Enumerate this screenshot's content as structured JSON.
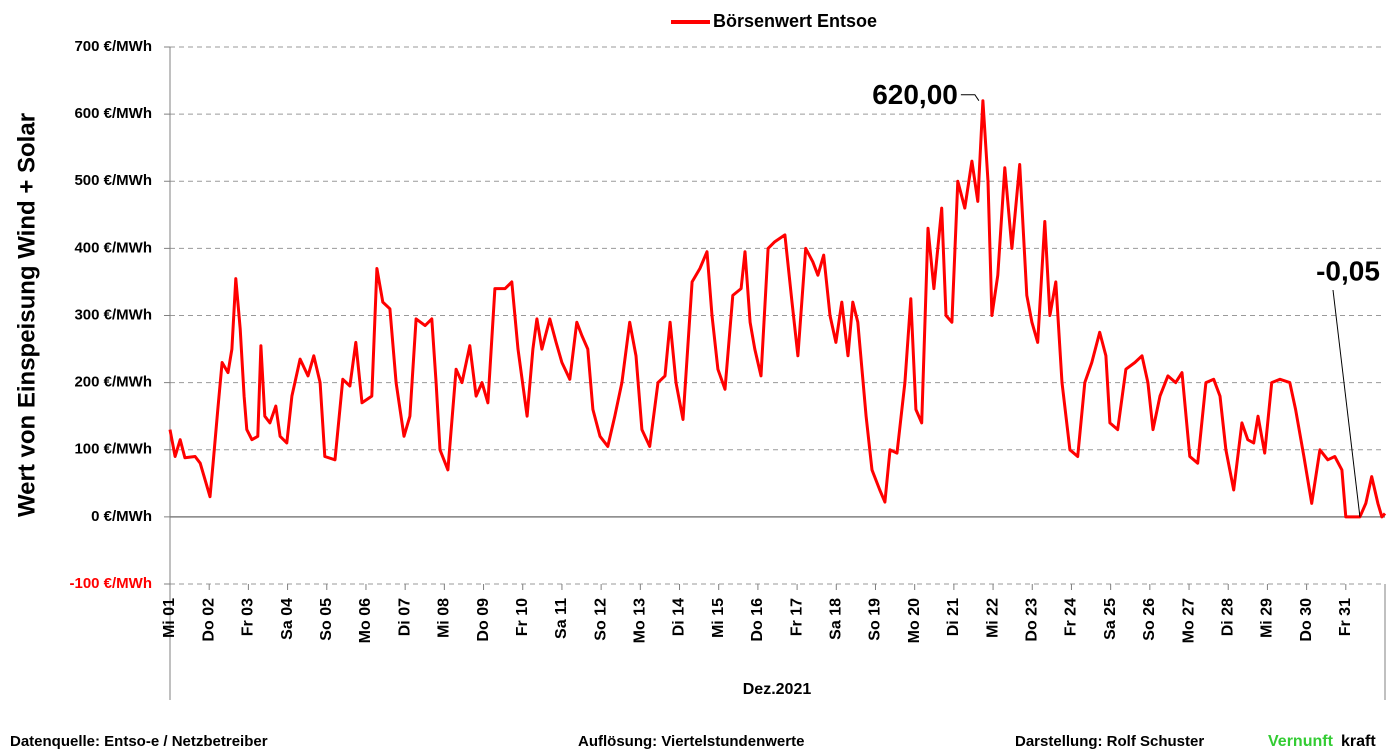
{
  "chart_data": {
    "type": "line",
    "legend": "Börsenwert Entsoe",
    "y_label": "Wert von Einspeisung Wind + Solar",
    "x_label": "Dez.2021",
    "ylim": [
      -100,
      700
    ],
    "yticks": [
      {
        "value": -100,
        "label": "-100 €/MWh"
      },
      {
        "value": 0,
        "label": "0 €/MWh"
      },
      {
        "value": 100,
        "label": "100 €/MWh"
      },
      {
        "value": 200,
        "label": "200 €/MWh"
      },
      {
        "value": 300,
        "label": "300 €/MWh"
      },
      {
        "value": 400,
        "label": "400 €/MWh"
      },
      {
        "value": 500,
        "label": "500 €/MWh"
      },
      {
        "value": 600,
        "label": "600 €/MWh"
      },
      {
        "value": 700,
        "label": "700 €/MWh"
      }
    ],
    "negative_tick_color": "#ff0000",
    "grid": true,
    "xlim": [
      0,
      31
    ],
    "xticks": [
      {
        "value": 0,
        "label": "Mi 01"
      },
      {
        "value": 1,
        "label": "Do 02"
      },
      {
        "value": 2,
        "label": "Fr 03"
      },
      {
        "value": 3,
        "label": "Sa 04"
      },
      {
        "value": 4,
        "label": "So 05"
      },
      {
        "value": 5,
        "label": "Mo 06"
      },
      {
        "value": 6,
        "label": "Di 07"
      },
      {
        "value": 7,
        "label": "Mi 08"
      },
      {
        "value": 8,
        "label": "Do 09"
      },
      {
        "value": 9,
        "label": "Fr 10"
      },
      {
        "value": 10,
        "label": "Sa 11"
      },
      {
        "value": 11,
        "label": "So 12"
      },
      {
        "value": 12,
        "label": "Mo 13"
      },
      {
        "value": 13,
        "label": "Di 14"
      },
      {
        "value": 14,
        "label": "Mi 15"
      },
      {
        "value": 15,
        "label": "Do 16"
      },
      {
        "value": 16,
        "label": "Fr 17"
      },
      {
        "value": 17,
        "label": "Sa 18"
      },
      {
        "value": 18,
        "label": "So 19"
      },
      {
        "value": 19,
        "label": "Mo 20"
      },
      {
        "value": 20,
        "label": "Di 21"
      },
      {
        "value": 21,
        "label": "Mi 22"
      },
      {
        "value": 22,
        "label": "Do 23"
      },
      {
        "value": 23,
        "label": "Fr 24"
      },
      {
        "value": 24,
        "label": "Sa 25"
      },
      {
        "value": 25,
        "label": "So 26"
      },
      {
        "value": 26,
        "label": "Mo 27"
      },
      {
        "value": 27,
        "label": "Di 28"
      },
      {
        "value": 28,
        "label": "Mi 29"
      },
      {
        "value": 29,
        "label": "Do 30"
      },
      {
        "value": 30,
        "label": "Fr 31"
      }
    ],
    "series": [
      {
        "name": "Börsenwert Entsoe",
        "color": "#ff0000",
        "x": [
          0.0,
          0.13,
          0.26,
          0.38,
          0.64,
          0.77,
          0.92,
          1.02,
          1.1,
          1.22,
          1.33,
          1.48,
          1.58,
          1.68,
          1.79,
          1.89,
          1.96,
          2.09,
          2.24,
          2.32,
          2.42,
          2.55,
          2.7,
          2.81,
          2.98,
          3.11,
          3.32,
          3.52,
          3.67,
          3.83,
          3.95,
          4.21,
          4.41,
          4.59,
          4.74,
          4.9,
          5.15,
          5.28,
          5.43,
          5.61,
          5.77,
          5.97,
          6.12,
          6.28,
          6.51,
          6.68,
          6.79,
          6.89,
          7.09,
          7.3,
          7.45,
          7.65,
          7.81,
          7.96,
          8.11,
          8.29,
          8.55,
          8.72,
          8.88,
          9.11,
          9.26,
          9.36,
          9.49,
          9.69,
          9.85,
          10.0,
          10.2,
          10.38,
          10.51,
          10.66,
          10.79,
          10.97,
          11.17,
          11.35,
          11.53,
          11.73,
          11.89,
          12.04,
          12.24,
          12.45,
          12.63,
          12.76,
          12.91,
          13.09,
          13.32,
          13.52,
          13.7,
          13.83,
          13.98,
          14.16,
          14.36,
          14.57,
          14.67,
          14.8,
          14.92,
          15.08,
          15.26,
          15.43,
          15.69,
          15.87,
          16.02,
          16.22,
          16.4,
          16.53,
          16.68,
          16.84,
          16.99,
          17.14,
          17.3,
          17.42,
          17.55,
          17.76,
          17.91,
          18.11,
          18.24,
          18.37,
          18.55,
          18.75,
          18.9,
          19.03,
          19.18,
          19.34,
          19.49,
          19.69,
          19.8,
          19.95,
          20.1,
          20.28,
          20.46,
          20.61,
          20.74,
          20.87,
          20.97,
          21.12,
          21.3,
          21.48,
          21.68,
          21.86,
          21.99,
          22.14,
          22.32,
          22.45,
          22.6,
          22.76,
          22.96,
          23.16,
          23.34,
          23.52,
          23.72,
          23.88,
          23.98,
          24.18,
          24.39,
          24.62,
          24.8,
          24.95,
          25.08,
          25.26,
          25.46,
          25.66,
          25.82,
          26.02,
          26.22,
          26.43,
          26.63,
          26.79,
          26.94,
          27.14,
          27.35,
          27.5,
          27.65,
          27.76,
          27.93,
          28.11,
          28.32,
          28.57,
          28.72,
          28.93,
          29.13,
          29.34,
          29.54,
          29.72,
          29.9,
          30.0,
          30.15,
          30.36,
          30.51,
          30.66,
          30.82,
          30.92,
          31.0
        ],
        "values": [
          130,
          90,
          115,
          88,
          90,
          80,
          50,
          30,
          80,
          160,
          230,
          215,
          250,
          355,
          280,
          180,
          130,
          115,
          120,
          255,
          150,
          140,
          165,
          120,
          110,
          180,
          235,
          210,
          240,
          200,
          90,
          85,
          205,
          195,
          260,
          170,
          180,
          370,
          320,
          310,
          200,
          120,
          150,
          295,
          285,
          295,
          200,
          100,
          70,
          220,
          200,
          255,
          180,
          200,
          170,
          340,
          340,
          350,
          250,
          150,
          250,
          295,
          250,
          295,
          260,
          230,
          205,
          290,
          270,
          250,
          160,
          120,
          105,
          150,
          200,
          290,
          240,
          130,
          105,
          200,
          210,
          290,
          200,
          145,
          350,
          370,
          395,
          300,
          220,
          190,
          330,
          340,
          395,
          290,
          250,
          210,
          400,
          410,
          420,
          320,
          240,
          400,
          380,
          360,
          390,
          300,
          260,
          320,
          240,
          320,
          290,
          150,
          70,
          40,
          22,
          100,
          95,
          200,
          325,
          160,
          140,
          430,
          340,
          460,
          300,
          290,
          500,
          460,
          530,
          470,
          620,
          500,
          300,
          360,
          520,
          400,
          525,
          330,
          290,
          260,
          440,
          300,
          350,
          200,
          100,
          90,
          200,
          230,
          275,
          240,
          140,
          130,
          220,
          230,
          240,
          200,
          130,
          180,
          210,
          200,
          215,
          90,
          80,
          200,
          205,
          180,
          100,
          40,
          140,
          115,
          110,
          150,
          95,
          200,
          205,
          200,
          160,
          90,
          20,
          100,
          85,
          90,
          70,
          0,
          0,
          -0.05,
          20,
          60,
          20,
          0,
          5
        ]
      }
    ],
    "annotations": [
      {
        "label": "620,00",
        "x": 20.74,
        "value": 620
      },
      {
        "label": "-0,05",
        "x": 30.36,
        "value": -0.05
      }
    ]
  },
  "footer": {
    "source": "Datenquelle:  Entso-e  / Netzbetreiber",
    "resolution": "Auflösung: Viertelstundenwerte",
    "author": "Darstellung:  Rolf Schuster",
    "brand_green": "Vernunft",
    "brand_black": "kraft"
  }
}
